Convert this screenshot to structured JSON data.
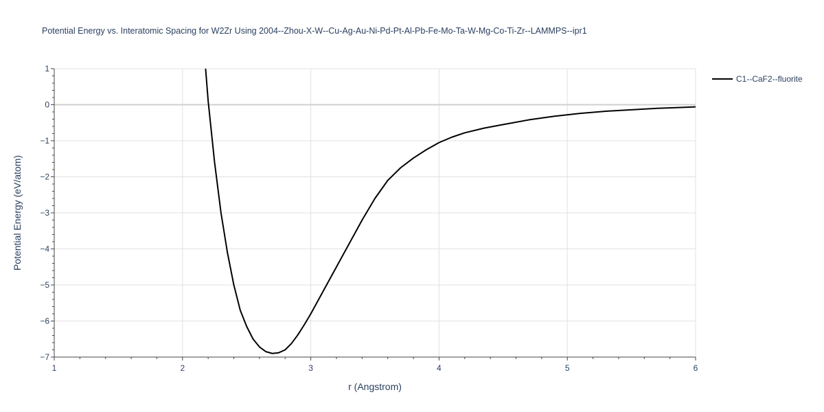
{
  "chart_data": {
    "type": "line",
    "title": "Potential Energy vs. Interatomic Spacing for W2Zr Using 2004--Zhou-X-W--Cu-Ag-Au-Ni-Pd-Pt-Al-Pb-Fe-Mo-Ta-W-Mg-Co-Ti-Zr--LAMMPS--ipr1",
    "xlabel": "r (Angstrom)",
    "ylabel": "Potential Energy (eV/atom)",
    "xlim": [
      1,
      6
    ],
    "ylim": [
      -7,
      1
    ],
    "xticks": [
      1,
      2,
      3,
      4,
      5,
      6
    ],
    "xtick_labels": [
      "1",
      "2",
      "3",
      "4",
      "5",
      "6"
    ],
    "yticks": [
      1,
      0,
      -1,
      -2,
      -3,
      -4,
      -5,
      -6,
      -7
    ],
    "ytick_labels": [
      "1",
      "0",
      "−1",
      "−2",
      "−3",
      "−4",
      "−5",
      "−6",
      "−7"
    ],
    "grid": true,
    "legend_position": "top-right",
    "series": [
      {
        "name": "C1--CaF2--fluorite",
        "color": "#000000",
        "x": [
          2.18,
          2.2,
          2.25,
          2.3,
          2.35,
          2.4,
          2.45,
          2.5,
          2.55,
          2.6,
          2.65,
          2.7,
          2.75,
          2.8,
          2.85,
          2.9,
          2.95,
          3.0,
          3.1,
          3.2,
          3.3,
          3.4,
          3.5,
          3.6,
          3.7,
          3.8,
          3.9,
          4.0,
          4.1,
          4.2,
          4.35,
          4.5,
          4.7,
          4.9,
          5.1,
          5.3,
          5.5,
          5.7,
          5.85,
          6.0
        ],
        "y": [
          1.0,
          0.1,
          -1.6,
          -3.0,
          -4.1,
          -5.0,
          -5.7,
          -6.15,
          -6.5,
          -6.72,
          -6.85,
          -6.9,
          -6.88,
          -6.8,
          -6.62,
          -6.38,
          -6.1,
          -5.8,
          -5.15,
          -4.5,
          -3.85,
          -3.2,
          -2.6,
          -2.1,
          -1.75,
          -1.48,
          -1.25,
          -1.05,
          -0.9,
          -0.78,
          -0.65,
          -0.55,
          -0.42,
          -0.32,
          -0.24,
          -0.18,
          -0.14,
          -0.1,
          -0.08,
          -0.06
        ]
      }
    ]
  }
}
